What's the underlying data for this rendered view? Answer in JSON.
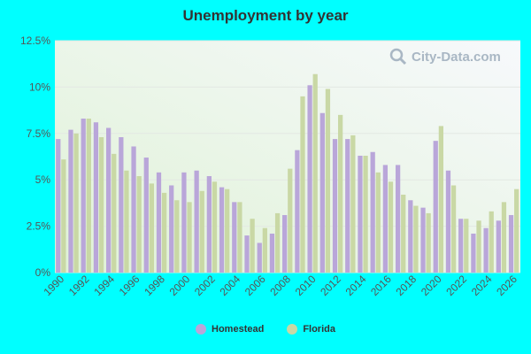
{
  "watermark": "City-Data.com",
  "legend": {
    "homestead": "Homestead",
    "florida": "Florida"
  },
  "colors": {
    "homestead": "#b9a6d9",
    "florida": "#c9d8a5"
  },
  "chart_data": {
    "type": "bar",
    "title": "Unemployment by year",
    "xlabel": "",
    "ylabel": "",
    "ylim": [
      0,
      12.5
    ],
    "yticks": [
      "0%",
      "2.5%",
      "5%",
      "7.5%",
      "10%",
      "12.5%"
    ],
    "xtick_labels": [
      "1990",
      "1992",
      "1994",
      "1996",
      "1998",
      "2000",
      "2002",
      "2004",
      "2006",
      "2008",
      "2010",
      "2012",
      "2014",
      "2016",
      "2018",
      "2020",
      "2022",
      "2024",
      "2026"
    ],
    "grid": true,
    "legend_position": "bottom",
    "categories": [
      1990,
      1991,
      1992,
      1993,
      1994,
      1995,
      1996,
      1997,
      1998,
      1999,
      2000,
      2001,
      2002,
      2003,
      2004,
      2005,
      2006,
      2007,
      2008,
      2009,
      2010,
      2011,
      2012,
      2013,
      2014,
      2015,
      2016,
      2017,
      2018,
      2019,
      2020,
      2021,
      2022,
      2023,
      2024,
      2025,
      2026
    ],
    "series": [
      {
        "name": "Homestead",
        "values": [
          7.2,
          7.7,
          8.3,
          8.1,
          7.8,
          7.3,
          6.8,
          6.2,
          5.4,
          4.7,
          5.4,
          5.5,
          5.2,
          4.6,
          3.8,
          2.0,
          1.6,
          2.1,
          3.1,
          6.6,
          10.1,
          8.6,
          7.2,
          7.2,
          6.3,
          6.5,
          5.8,
          5.8,
          3.9,
          3.5,
          7.1,
          5.5,
          2.9,
          2.1,
          2.4,
          2.8,
          3.1
        ]
      },
      {
        "name": "Florida",
        "values": [
          6.1,
          7.5,
          8.3,
          7.3,
          6.4,
          5.5,
          5.2,
          4.8,
          4.3,
          3.9,
          3.8,
          4.4,
          4.9,
          4.5,
          3.8,
          2.9,
          2.4,
          3.2,
          5.6,
          9.5,
          10.7,
          9.9,
          8.5,
          7.4,
          6.3,
          5.4,
          4.9,
          4.2,
          3.6,
          3.2,
          7.9,
          4.7,
          2.9,
          2.8,
          3.3,
          3.8,
          4.5
        ]
      }
    ]
  }
}
